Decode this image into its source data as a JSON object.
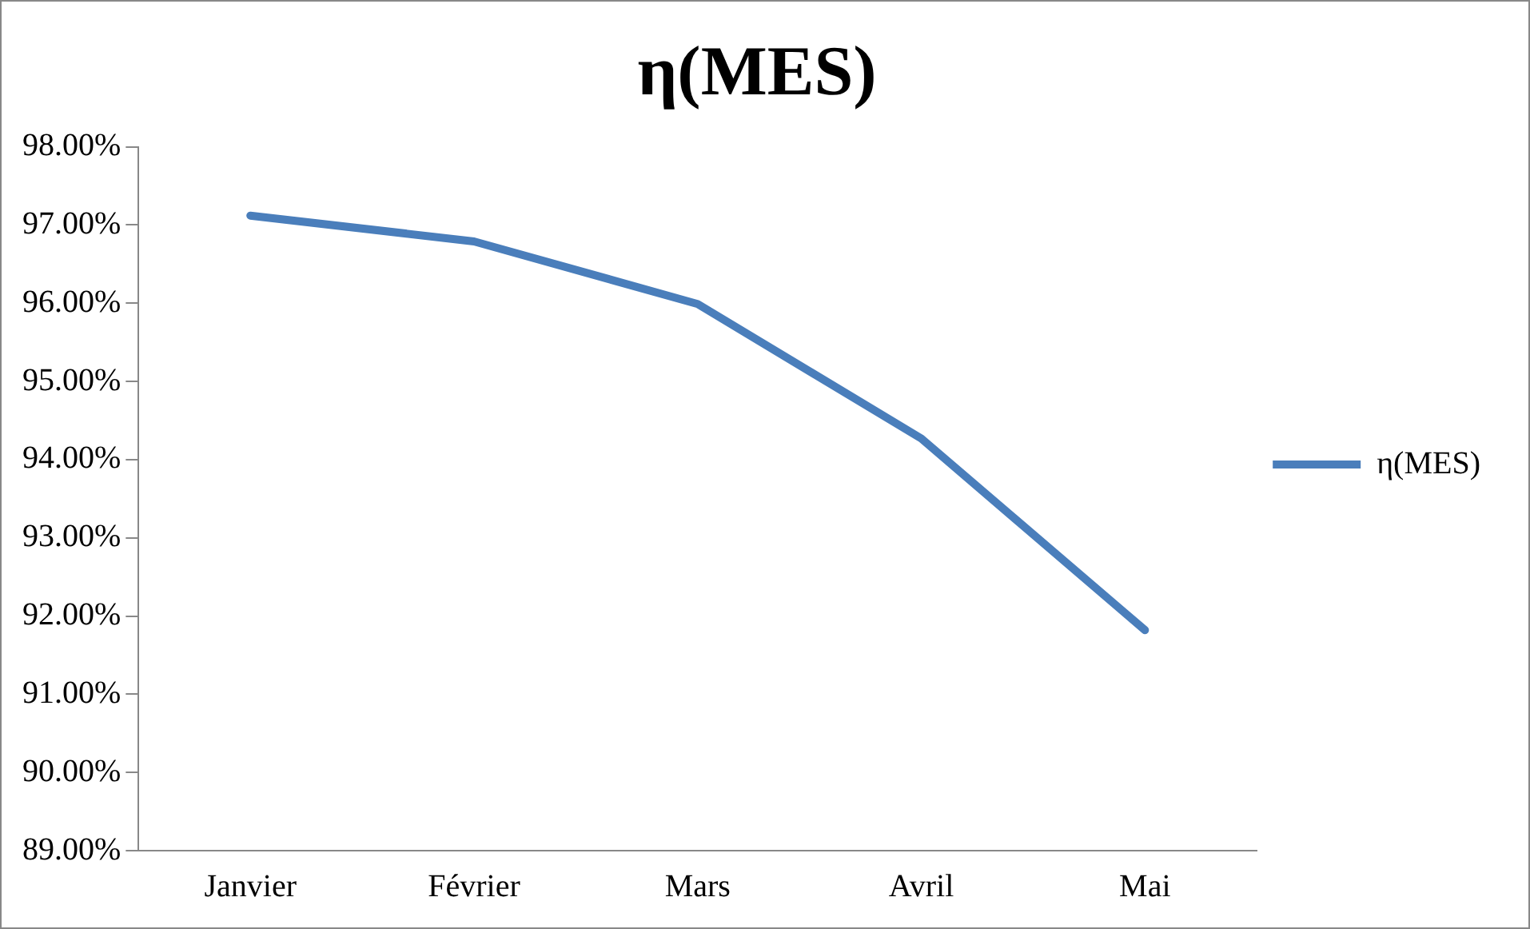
{
  "chart_data": {
    "type": "line",
    "title": "η(MES)",
    "categories": [
      "Janvier",
      "Février",
      "Mars",
      "Avril",
      "Mai"
    ],
    "series": [
      {
        "name": "η(MES)",
        "color": "#4a7ebb",
        "values": [
          97.12,
          96.79,
          95.99,
          94.27,
          91.82
        ]
      }
    ],
    "ylim": [
      89,
      98
    ],
    "yticks": [
      {
        "value": 89,
        "label": "89.00%"
      },
      {
        "value": 90,
        "label": "90.00%"
      },
      {
        "value": 91,
        "label": "91.00%"
      },
      {
        "value": 92,
        "label": "92.00%"
      },
      {
        "value": 93,
        "label": "93.00%"
      },
      {
        "value": 94,
        "label": "94.00%"
      },
      {
        "value": 95,
        "label": "95.00%"
      },
      {
        "value": 96,
        "label": "96.00%"
      },
      {
        "value": 97,
        "label": "97.00%"
      },
      {
        "value": 98,
        "label": "98.00%"
      }
    ],
    "grid": false,
    "legend": "right",
    "marker": "none",
    "line_style": "solid"
  }
}
